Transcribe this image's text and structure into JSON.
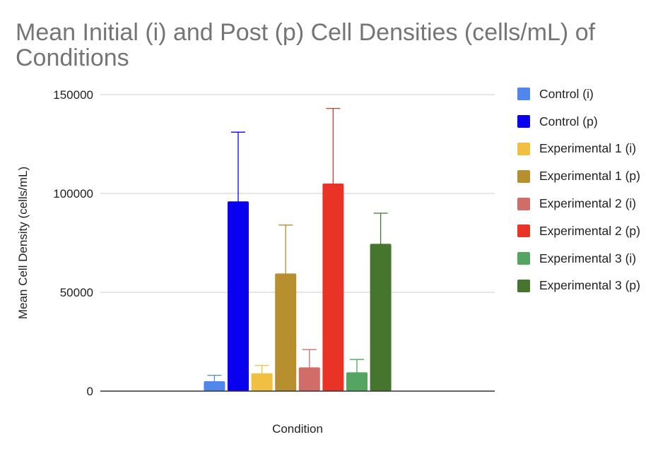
{
  "chart_data": {
    "type": "bar",
    "title": "Mean Initial (i) and Post (p) Cell Densities (cells/mL) of Conditions",
    "xlabel": "Condition",
    "ylabel": "Mean Cell Density (cells/mL)",
    "ylim": [
      0,
      150000
    ],
    "yticks": [
      "0",
      "50000",
      "100000",
      "150000"
    ],
    "tick_values": [
      0,
      50000,
      100000,
      150000
    ],
    "grid": true,
    "legend_position": "right",
    "series": [
      {
        "name": "Control (i)",
        "value": 5000,
        "error_low": 2000,
        "error_high": 8000,
        "color": "#4f87ea"
      },
      {
        "name": "Control (p)",
        "value": 96000,
        "error_low": 61000,
        "error_high": 131000,
        "color": "#0a00f0"
      },
      {
        "name": "Experimental 1 (i)",
        "value": 9000,
        "error_low": 5000,
        "error_high": 13000,
        "color": "#f1bf42"
      },
      {
        "name": "Experimental 1 (p)",
        "value": 59500,
        "error_low": 36000,
        "error_high": 84000,
        "color": "#b78f2e"
      },
      {
        "name": "Experimental 2 (i)",
        "value": 12000,
        "error_low": 3000,
        "error_high": 21000,
        "color": "#d06d69"
      },
      {
        "name": "Experimental 2 (p)",
        "value": 105000,
        "error_low": 68000,
        "error_high": 143000,
        "color": "#e83326"
      },
      {
        "name": "Experimental 3 (i)",
        "value": 9500,
        "error_low": 3500,
        "error_high": 16000,
        "color": "#54a561"
      },
      {
        "name": "Experimental 3 (p)",
        "value": 74500,
        "error_low": 60000,
        "error_high": 90000,
        "color": "#46752e"
      }
    ]
  }
}
